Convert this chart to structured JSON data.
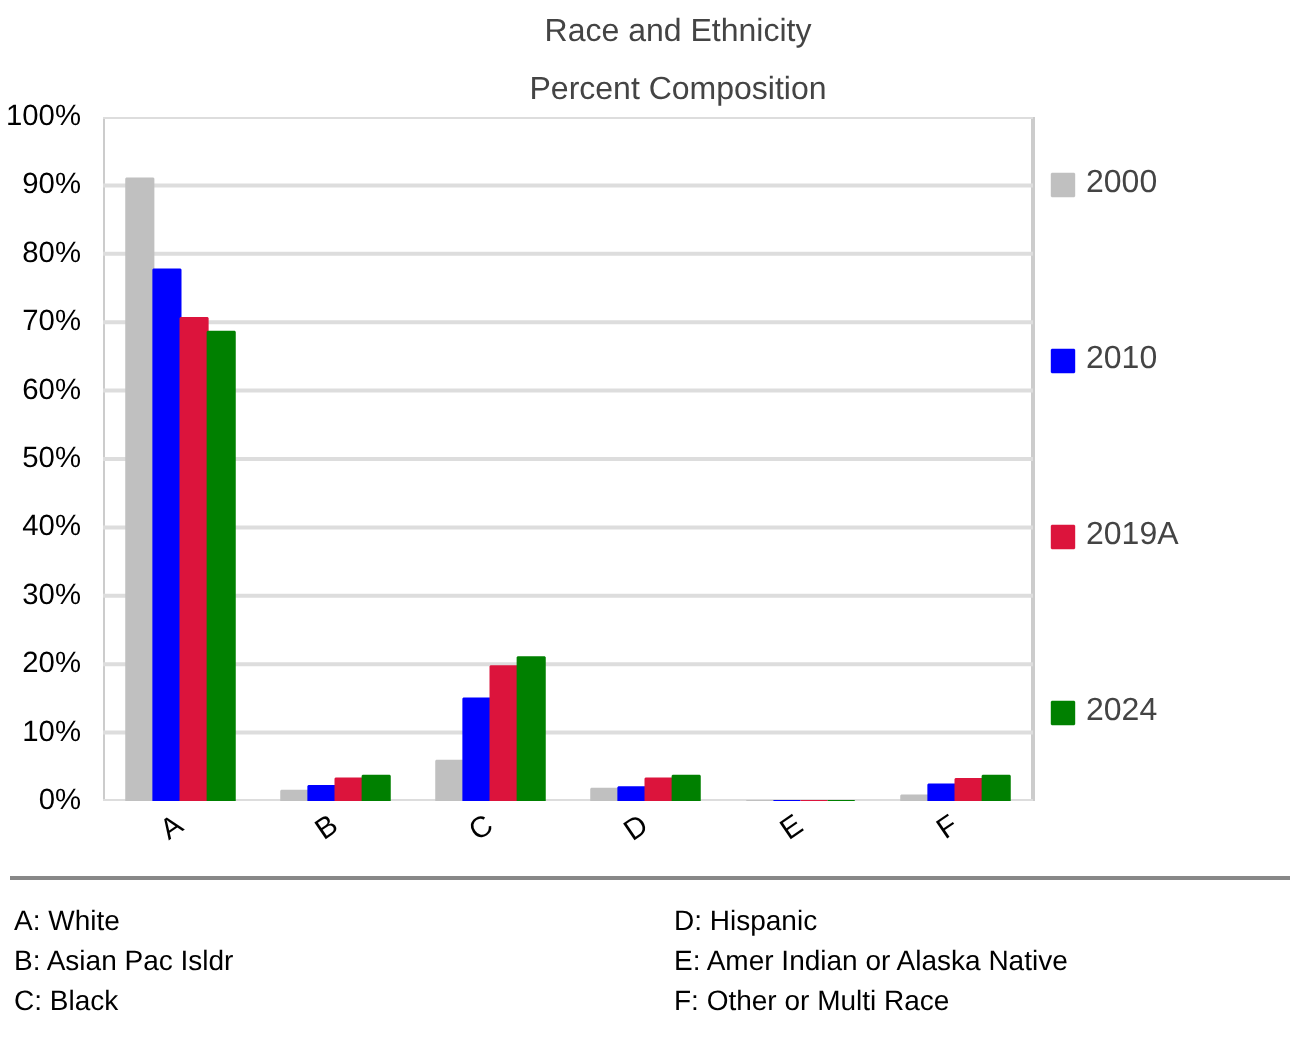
{
  "chart_data": {
    "type": "bar",
    "title": "Race and Ethnicity",
    "subtitle": "Percent Composition",
    "categories": [
      "A",
      "B",
      "C",
      "D",
      "E",
      "F"
    ],
    "series": [
      {
        "name": "2000",
        "color": "#c0c0c0",
        "values": [
          91,
          1.5,
          5.9,
          1.8,
          0,
          0.8
        ]
      },
      {
        "name": "2010",
        "color": "#0000ff",
        "values": [
          77.7,
          2.2,
          15,
          2.0,
          0,
          2.4
        ]
      },
      {
        "name": "2019A",
        "color": "#dc143c",
        "values": [
          70.6,
          3.3,
          19.7,
          3.3,
          0,
          3.2
        ]
      },
      {
        "name": "2024",
        "color": "#008000",
        "values": [
          68.6,
          3.7,
          21,
          3.7,
          0,
          3.7
        ]
      }
    ],
    "ylim": [
      0,
      100
    ],
    "yticks": [
      {
        "value": 0,
        "label": "0%"
      },
      {
        "value": 10,
        "label": "10%"
      },
      {
        "value": 20,
        "label": "20%"
      },
      {
        "value": 30,
        "label": "30%"
      },
      {
        "value": 40,
        "label": "40%"
      },
      {
        "value": 50,
        "label": "50%"
      },
      {
        "value": 60,
        "label": "60%"
      },
      {
        "value": 70,
        "label": "70%"
      },
      {
        "value": 80,
        "label": "80%"
      },
      {
        "value": 90,
        "label": "90%"
      },
      {
        "value": 100,
        "label": "100%"
      }
    ],
    "grid": "y",
    "legend": "right",
    "annotations": [
      "A: White",
      "B: Asian Pac Isldr",
      "C: Black",
      "D: Hispanic",
      "E: Amer Indian or Alaska Native",
      "F: Other or Multi Race"
    ]
  }
}
